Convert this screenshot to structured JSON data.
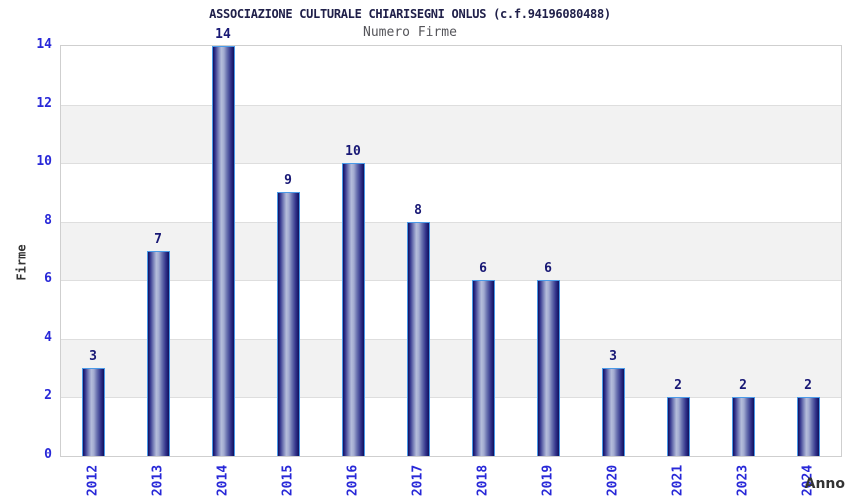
{
  "header": {
    "title": "ASSOCIAZIONE CULTURALE CHIARISEGNI ONLUS (c.f.94196080488)",
    "subtitle": "Numero Firme"
  },
  "chart_data": {
    "type": "bar",
    "title": "ASSOCIAZIONE CULTURALE CHIARISEGNI ONLUS (c.f.94196080488)",
    "subtitle": "Numero Firme",
    "categories": [
      "2012",
      "2013",
      "2014",
      "2015",
      "2016",
      "2017",
      "2018",
      "2019",
      "2020",
      "2021",
      "2023",
      "2024"
    ],
    "values": [
      3,
      7,
      14,
      9,
      10,
      8,
      6,
      6,
      3,
      2,
      2,
      2
    ],
    "xlabel": "Anno",
    "ylabel": "Firme",
    "ylim": [
      0,
      14
    ],
    "yticks": [
      0,
      2,
      4,
      6,
      8,
      10,
      12,
      14
    ],
    "grid": "horizontal-bands",
    "legend": "none",
    "colors": {
      "bar_dark": "#10105c",
      "bar_mid": "#6a72b0",
      "bar_light": "#b6bedb",
      "bar_outline": "#4a9ae8",
      "tick_label": "#2828d8",
      "value_label": "#181875",
      "band_gray": "#f2f2f2",
      "gridline": "#dedede",
      "plot_border": "#cfcfcf",
      "title": "#20204a",
      "subtitle": "#55555a",
      "axis_title": "#333333",
      "background": "#ffffff"
    }
  }
}
